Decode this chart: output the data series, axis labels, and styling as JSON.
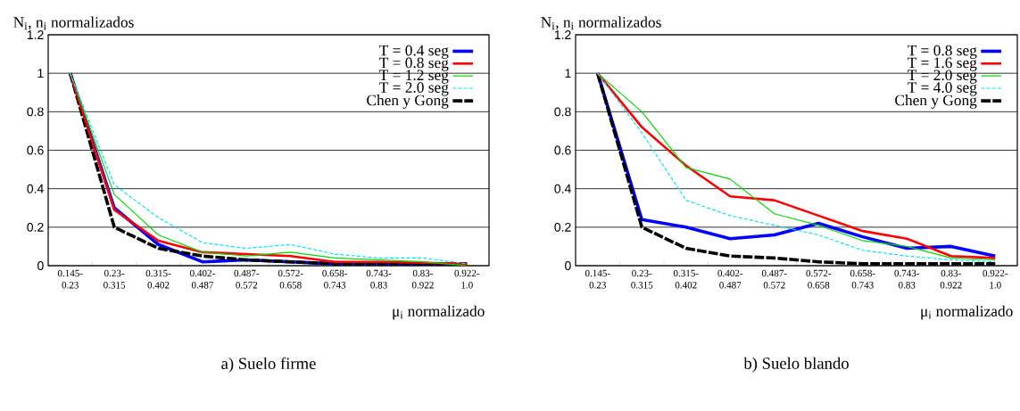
{
  "chart_data": [
    {
      "type": "line",
      "title": "a) Suelo firme",
      "xlabel": "μ$_{i}$ normalizado",
      "ylabel": "N$_{i}$, n$_{i}$ normalizados",
      "categories": [
        "0.145- 0.23",
        "0.23- 0.315",
        "0.315- 0.402",
        "0.402- 0.487",
        "0.487- 0.572",
        "0.572- 0.658",
        "0.658- 0.743",
        "0.743- 0.83",
        "0.83- 0.922",
        "0.922- 1.0"
      ],
      "series": [
        {
          "name": "T = 0.4 seg",
          "color": "#0000ff",
          "line_style": "solid",
          "values": [
            1,
            0.3,
            0.11,
            0.02,
            0.03,
            0.02,
            0.01,
            0.01,
            0.005,
            0
          ]
        },
        {
          "name": "T = 0.8 seg",
          "color": "#ff0000",
          "line_style": "solid",
          "values": [
            1,
            0.29,
            0.13,
            0.07,
            0.06,
            0.05,
            0.02,
            0.02,
            0.015,
            0.01
          ]
        },
        {
          "name": "T = 1.2 seg",
          "color": "#00dd00",
          "line_style": "solid",
          "values": [
            1,
            0.37,
            0.16,
            0.07,
            0.05,
            0.07,
            0.04,
            0.03,
            0.02,
            0
          ]
        },
        {
          "name": "T = 2.0 seg",
          "color": "#00e5ff",
          "line_style": "dashed",
          "values": [
            1,
            0.42,
            0.25,
            0.12,
            0.09,
            0.11,
            0.06,
            0.04,
            0.04,
            0.01
          ]
        },
        {
          "name": "Chen y Gong",
          "color": "#000000",
          "line_style": "dashed",
          "values": [
            1,
            0.2,
            0.09,
            0.05,
            0.03,
            0.02,
            0.01,
            0.01,
            0.01,
            0.01
          ]
        }
      ],
      "ylim": [
        0,
        1.2
      ],
      "yticks": [
        0,
        0.2,
        0.4,
        0.6,
        0.8,
        1,
        1.2
      ],
      "grid": "y",
      "legend": "top right"
    },
    {
      "type": "line",
      "title": "b) Suelo blando",
      "xlabel": "μ$_{i}$ normalizado",
      "ylabel": "N$_{i}$, n$_{i}$ normalizados",
      "categories": [
        "0.145- 0.23",
        "0.23- 0.315",
        "0.315- 0.402",
        "0.402- 0.487",
        "0.487- 0.572",
        "0.572- 0.658",
        "0.658- 0.743",
        "0.743- 0.83",
        "0.83- 0.922",
        "0.922- 1.0"
      ],
      "series": [
        {
          "name": "T = 0.8 seg",
          "color": "#0000ff",
          "line_style": "solid",
          "values": [
            1,
            0.24,
            0.2,
            0.14,
            0.16,
            0.22,
            0.15,
            0.09,
            0.1,
            0.05
          ]
        },
        {
          "name": "T = 1.6 seg",
          "color": "#ff0000",
          "line_style": "solid",
          "values": [
            1,
            0.72,
            0.52,
            0.36,
            0.34,
            0.26,
            0.18,
            0.14,
            0.05,
            0.04
          ]
        },
        {
          "name": "T = 2.0 seg",
          "color": "#00dd00",
          "line_style": "solid",
          "values": [
            1,
            0.8,
            0.51,
            0.45,
            0.27,
            0.21,
            0.13,
            0.1,
            0.04,
            0.03
          ]
        },
        {
          "name": "T = 4.0 seg",
          "color": "#00e5ff",
          "line_style": "dashed",
          "values": [
            1,
            0.69,
            0.34,
            0.26,
            0.21,
            0.16,
            0.08,
            0.05,
            0.03,
            0.02
          ]
        },
        {
          "name": "Chen y Gong",
          "color": "#000000",
          "line_style": "dashed",
          "values": [
            1,
            0.2,
            0.09,
            0.05,
            0.04,
            0.02,
            0.01,
            0.01,
            0.01,
            0.01
          ]
        }
      ],
      "ylim": [
        0,
        1.2
      ],
      "yticks": [
        0,
        0.2,
        0.4,
        0.6,
        0.8,
        1,
        1.2
      ],
      "grid": "y",
      "legend": "top right"
    }
  ]
}
